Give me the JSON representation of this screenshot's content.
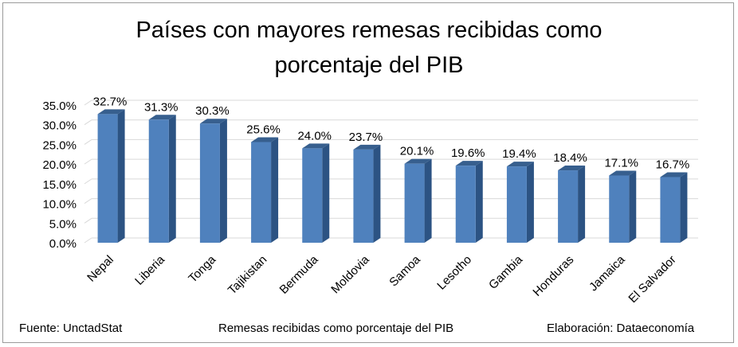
{
  "chart_data": {
    "type": "bar",
    "title": "Países con mayores remesas recibidas como porcentaje del PIB",
    "title_lines": [
      "Países con mayores remesas recibidas como",
      "porcentaje del PIB"
    ],
    "categories": [
      "Nepal",
      "Liberia",
      "Tonga",
      "Tajikistan",
      "Bermuda",
      "Moldovia",
      "Samoa",
      "Lesotho",
      "Gambia",
      "Honduras",
      "Jamaica",
      "El Salvador"
    ],
    "values": [
      32.7,
      31.3,
      30.3,
      25.6,
      24.0,
      23.7,
      20.1,
      19.6,
      19.4,
      18.4,
      17.1,
      16.7
    ],
    "data_labels": [
      "32.7%",
      "31.3%",
      "30.3%",
      "25.6%",
      "24.0%",
      "23.7%",
      "20.1%",
      "19.6%",
      "19.4%",
      "18.4%",
      "17.1%",
      "16.7%"
    ],
    "y_ticks": [
      0,
      5,
      10,
      15,
      20,
      25,
      30,
      35
    ],
    "y_tick_labels": [
      "0.0%",
      "5.0%",
      "10.0%",
      "15.0%",
      "20.0%",
      "25.0%",
      "30.0%",
      "35.0%"
    ],
    "ylim": [
      0,
      35
    ],
    "xlabel": "",
    "ylabel": "",
    "grid": true,
    "bar_style": "3d",
    "colors": {
      "bar_front": "#4f81bd",
      "bar_side": "#2c5383",
      "bar_top": "#375f8e",
      "grid": "#d9d9d9",
      "text": "#000000"
    }
  },
  "footer": {
    "source": "Fuente: UnctadStat",
    "caption": "Remesas recibidas como porcentaje del PIB",
    "credit": "Elaboración: Dataeconomía"
  }
}
